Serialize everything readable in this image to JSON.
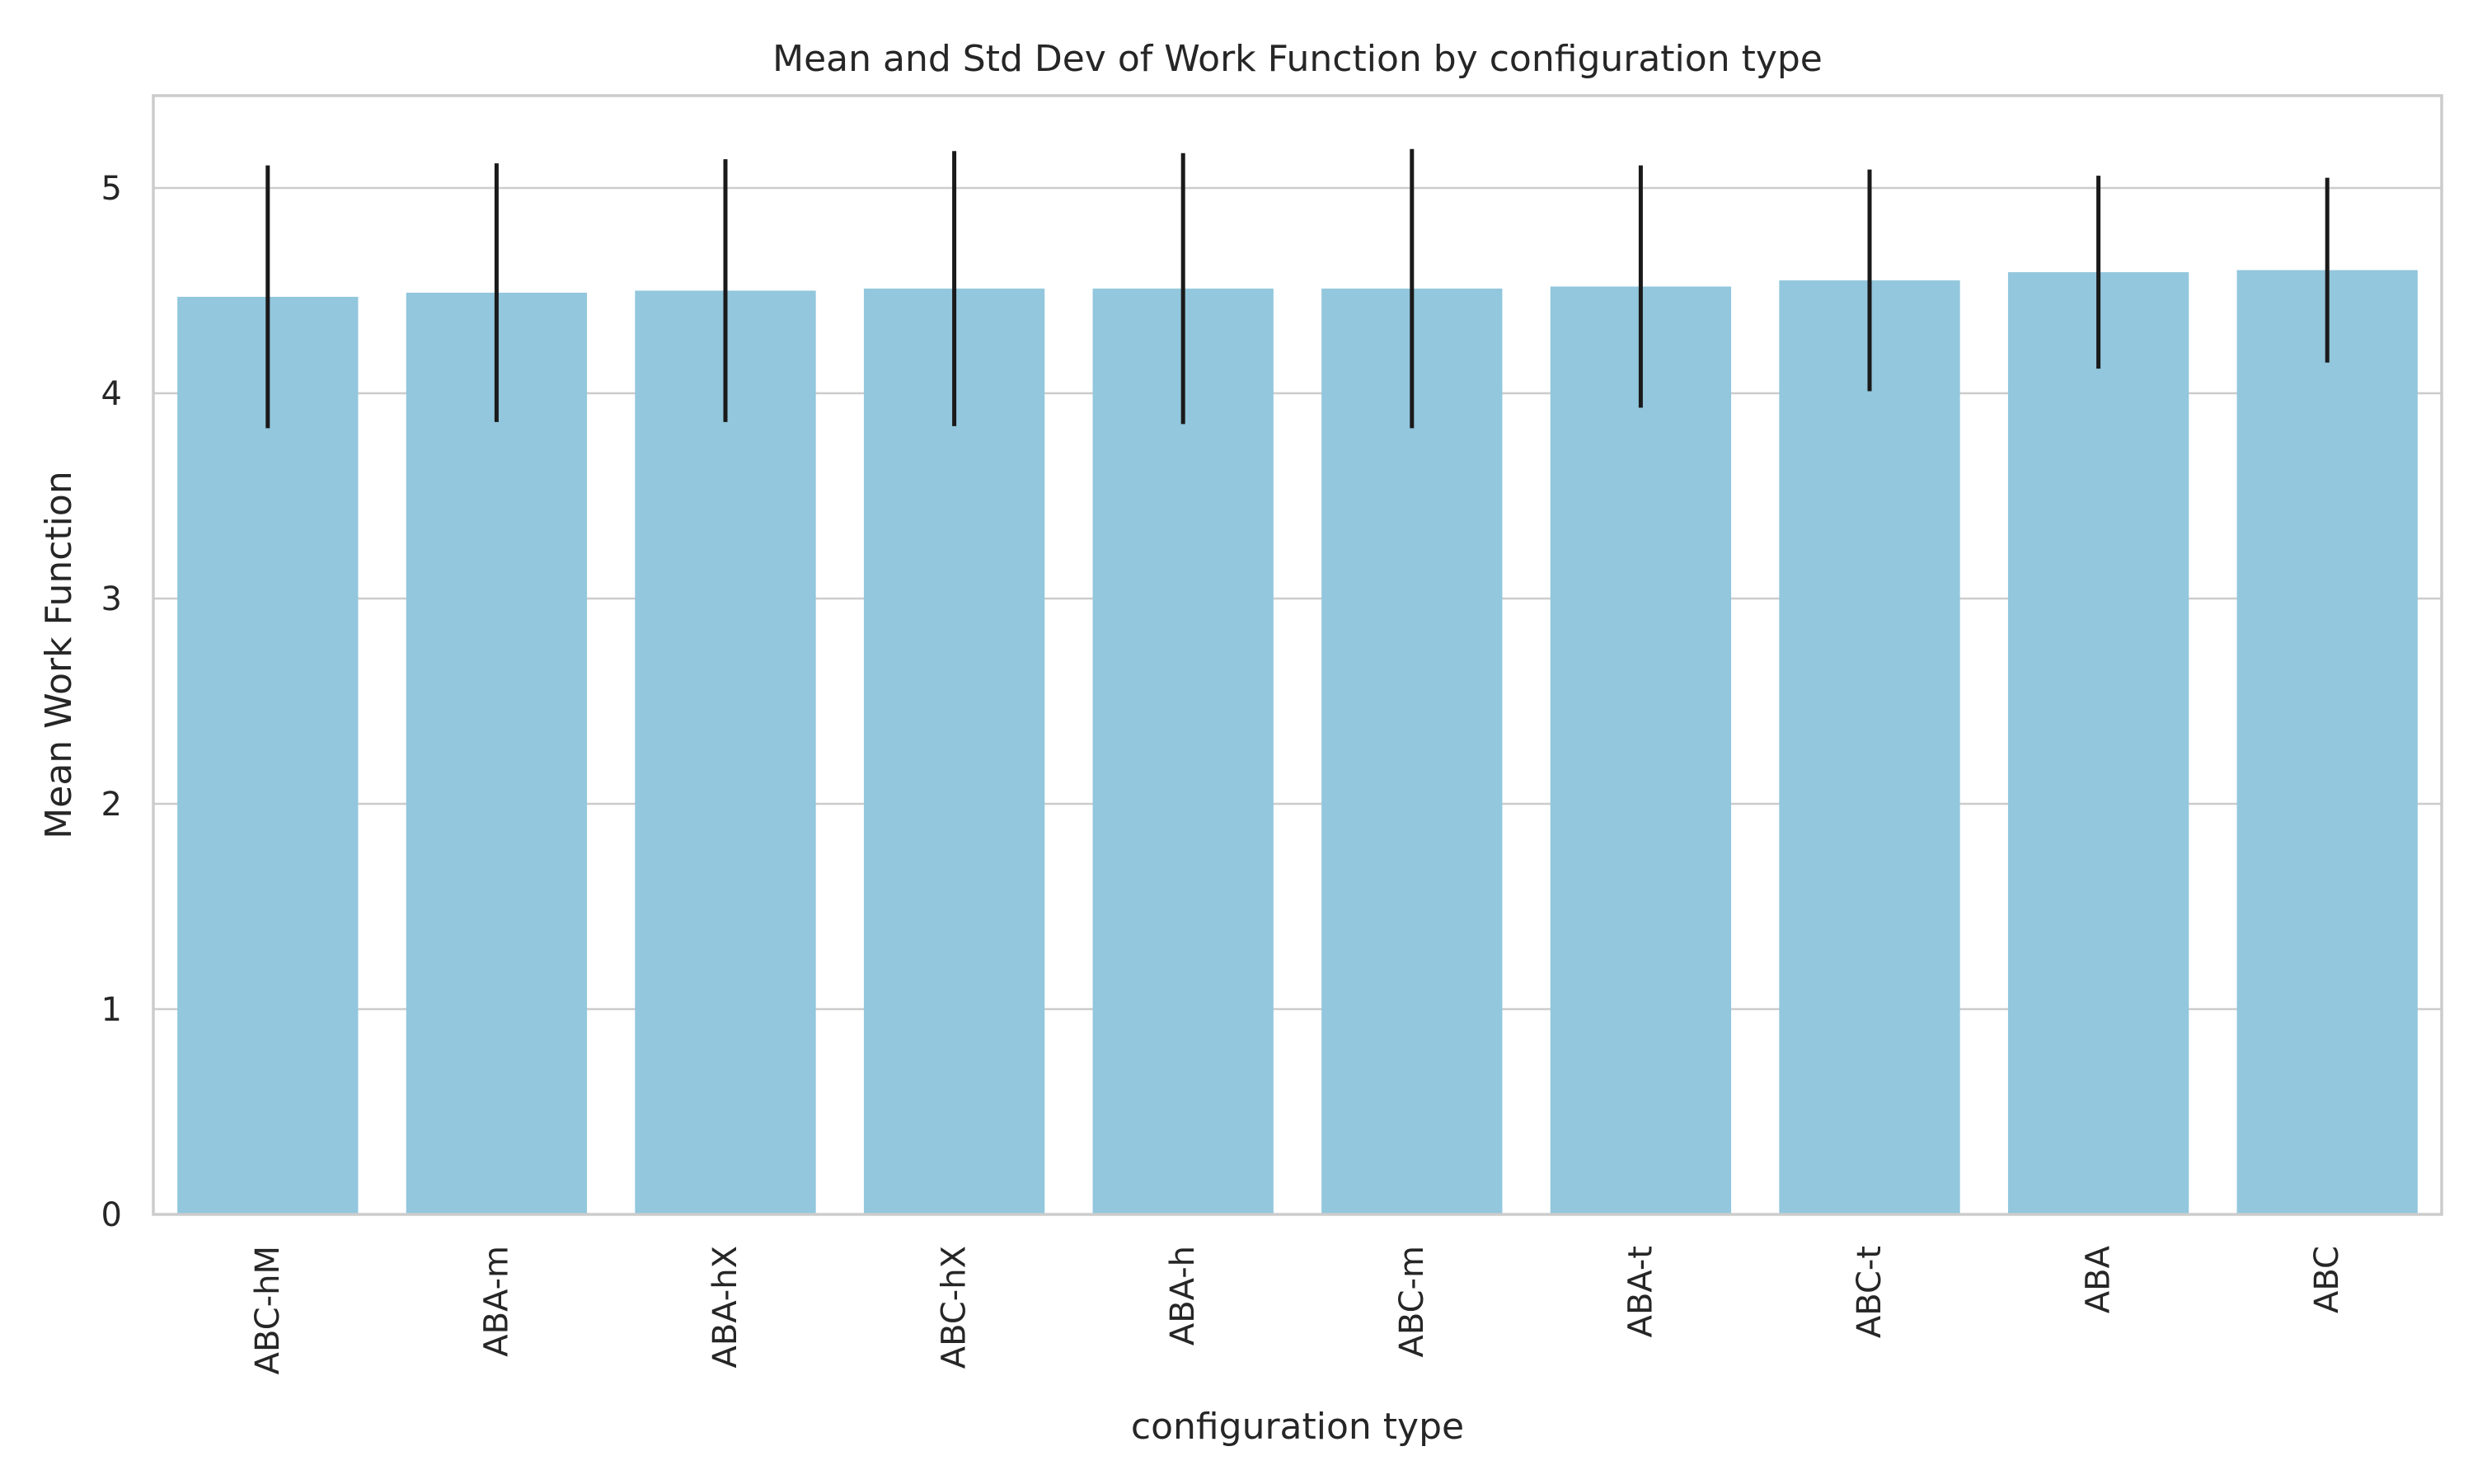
{
  "chart_data": {
    "type": "bar",
    "title": "Mean and Std Dev of Work Function by configuration type",
    "xlabel": "configuration type",
    "ylabel": "Mean Work Function",
    "categories": [
      "ABC-hM",
      "ABA-m",
      "ABA-hX",
      "ABC-hX",
      "ABA-h",
      "ABC-m",
      "ABA-t",
      "ABC-t",
      "ABA",
      "ABC"
    ],
    "values": [
      4.47,
      4.49,
      4.5,
      4.51,
      4.51,
      4.51,
      4.52,
      4.55,
      4.59,
      4.6
    ],
    "error": [
      0.64,
      0.63,
      0.64,
      0.67,
      0.66,
      0.68,
      0.59,
      0.54,
      0.47,
      0.45
    ],
    "yticks": [
      "0",
      "1",
      "2",
      "3",
      "4",
      "5"
    ],
    "ylim": [
      0,
      5.45
    ],
    "grid": true,
    "colors": {
      "bar": "#92c7dd",
      "error_bar": "#1a1a1a",
      "grid": "#cccccc",
      "axes": "#cccccc",
      "text": "#262626"
    }
  }
}
